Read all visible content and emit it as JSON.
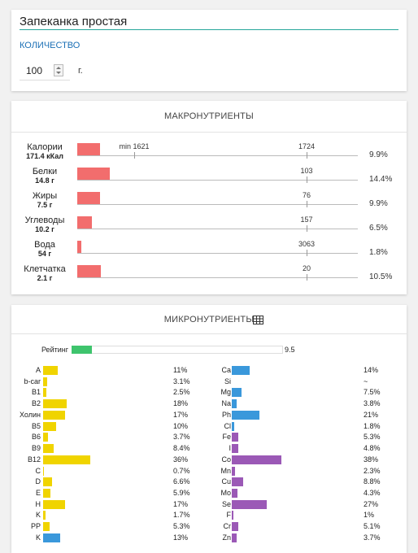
{
  "recipe": {
    "title": "Запеканка простая",
    "quantity_label": "КОЛИЧЕСТВО",
    "quantity": 100,
    "unit": "г."
  },
  "macros": {
    "header": "МАКРОНУТРИЕНТЫ",
    "rows": [
      {
        "name": "Калории",
        "amount": "171.4 кКал",
        "norm": 1724,
        "min_label": "min 1621",
        "percent": {
          "value": 9.9,
          "label": "9.9%"
        }
      },
      {
        "name": "Белки",
        "amount": "14.8 г",
        "norm": 103,
        "percent": {
          "value": 14.4,
          "label": "14.4%"
        }
      },
      {
        "name": "Жиры",
        "amount": "7.5 г",
        "norm": 76,
        "percent": {
          "value": 9.9,
          "label": "9.9%"
        }
      },
      {
        "name": "Углеводы",
        "amount": "10.2 г",
        "norm": 157,
        "percent": {
          "value": 6.5,
          "label": "6.5%"
        }
      },
      {
        "name": "Вода",
        "amount": "54 г",
        "norm": 3063,
        "percent": {
          "value": 1.8,
          "label": "1.8%"
        }
      },
      {
        "name": "Клетчатка",
        "amount": "2.1 г",
        "norm": 20,
        "percent": {
          "value": 10.5,
          "label": "10.5%"
        }
      }
    ]
  },
  "micros": {
    "header": "МИКРОНУТРИЕНТЫ",
    "rating": {
      "label": "Рейтинг",
      "value": 9.5,
      "xlim": [
        0,
        100
      ]
    },
    "vitamins": [
      {
        "name": "A",
        "percent": {
          "value": 11,
          "label": "11%"
        },
        "color": "#f0d400"
      },
      {
        "name": "b-car",
        "percent": {
          "value": 3.1,
          "label": "3.1%"
        },
        "color": "#f0d400"
      },
      {
        "name": "B1",
        "percent": {
          "value": 2.5,
          "label": "2.5%"
        },
        "color": "#f0d400"
      },
      {
        "name": "B2",
        "percent": {
          "value": 18,
          "label": "18%"
        },
        "color": "#f0d400"
      },
      {
        "name": "Холин",
        "percent": {
          "value": 17,
          "label": "17%"
        },
        "color": "#f0d400"
      },
      {
        "name": "B5",
        "percent": {
          "value": 10,
          "label": "10%"
        },
        "color": "#f0d400"
      },
      {
        "name": "B6",
        "percent": {
          "value": 3.7,
          "label": "3.7%"
        },
        "color": "#f0d400"
      },
      {
        "name": "B9",
        "percent": {
          "value": 8.4,
          "label": "8.4%"
        },
        "color": "#f0d400"
      },
      {
        "name": "B12",
        "percent": {
          "value": 36,
          "label": "36%"
        },
        "color": "#f0d400"
      },
      {
        "name": "C",
        "percent": {
          "value": 0.7,
          "label": "0.7%"
        },
        "color": "#f0d400"
      },
      {
        "name": "D",
        "percent": {
          "value": 6.6,
          "label": "6.6%"
        },
        "color": "#f0d400"
      },
      {
        "name": "E",
        "percent": {
          "value": 5.9,
          "label": "5.9%"
        },
        "color": "#f0d400"
      },
      {
        "name": "H",
        "percent": {
          "value": 17,
          "label": "17%"
        },
        "color": "#f0d400"
      },
      {
        "name": "K",
        "percent": {
          "value": 1.7,
          "label": "1.7%"
        },
        "color": "#f0d400"
      },
      {
        "name": "PP",
        "percent": {
          "value": 5.3,
          "label": "5.3%"
        },
        "color": "#f0d400"
      },
      {
        "name": "K",
        "percent": {
          "value": 13,
          "label": "13%"
        },
        "color": "#3a98db"
      }
    ],
    "minerals": [
      {
        "name": "Ca",
        "percent": {
          "value": 14,
          "label": "14%"
        },
        "color": "#3a98db"
      },
      {
        "name": "Si",
        "percent": {
          "value": null,
          "label": "~"
        },
        "color": "#3a98db"
      },
      {
        "name": "Mg",
        "percent": {
          "value": 7.5,
          "label": "7.5%"
        },
        "color": "#3a98db"
      },
      {
        "name": "Na",
        "percent": {
          "value": 3.8,
          "label": "3.8%"
        },
        "color": "#3a98db"
      },
      {
        "name": "Ph",
        "percent": {
          "value": 21,
          "label": "21%"
        },
        "color": "#3a98db"
      },
      {
        "name": "Cl",
        "percent": {
          "value": 1.8,
          "label": "1.8%"
        },
        "color": "#3a98db"
      },
      {
        "name": "Fe",
        "percent": {
          "value": 5.3,
          "label": "5.3%"
        },
        "color": "#9b59b6"
      },
      {
        "name": "I",
        "percent": {
          "value": 4.8,
          "label": "4.8%"
        },
        "color": "#9b59b6"
      },
      {
        "name": "Co",
        "percent": {
          "value": 38,
          "label": "38%"
        },
        "color": "#9b59b6"
      },
      {
        "name": "Mn",
        "percent": {
          "value": 2.3,
          "label": "2.3%"
        },
        "color": "#9b59b6"
      },
      {
        "name": "Cu",
        "percent": {
          "value": 8.8,
          "label": "8.8%"
        },
        "color": "#9b59b6"
      },
      {
        "name": "Mo",
        "percent": {
          "value": 4.3,
          "label": "4.3%"
        },
        "color": "#9b59b6"
      },
      {
        "name": "Se",
        "percent": {
          "value": 27,
          "label": "27%"
        },
        "color": "#9b59b6"
      },
      {
        "name": "F",
        "percent": {
          "value": 1,
          "label": "1%"
        },
        "color": "#9b59b6"
      },
      {
        "name": "Cr",
        "percent": {
          "value": 5.1,
          "label": "5.1%"
        },
        "color": "#9b59b6"
      },
      {
        "name": "Zn",
        "percent": {
          "value": 3.7,
          "label": "3.7%"
        },
        "color": "#9b59b6"
      }
    ]
  }
}
